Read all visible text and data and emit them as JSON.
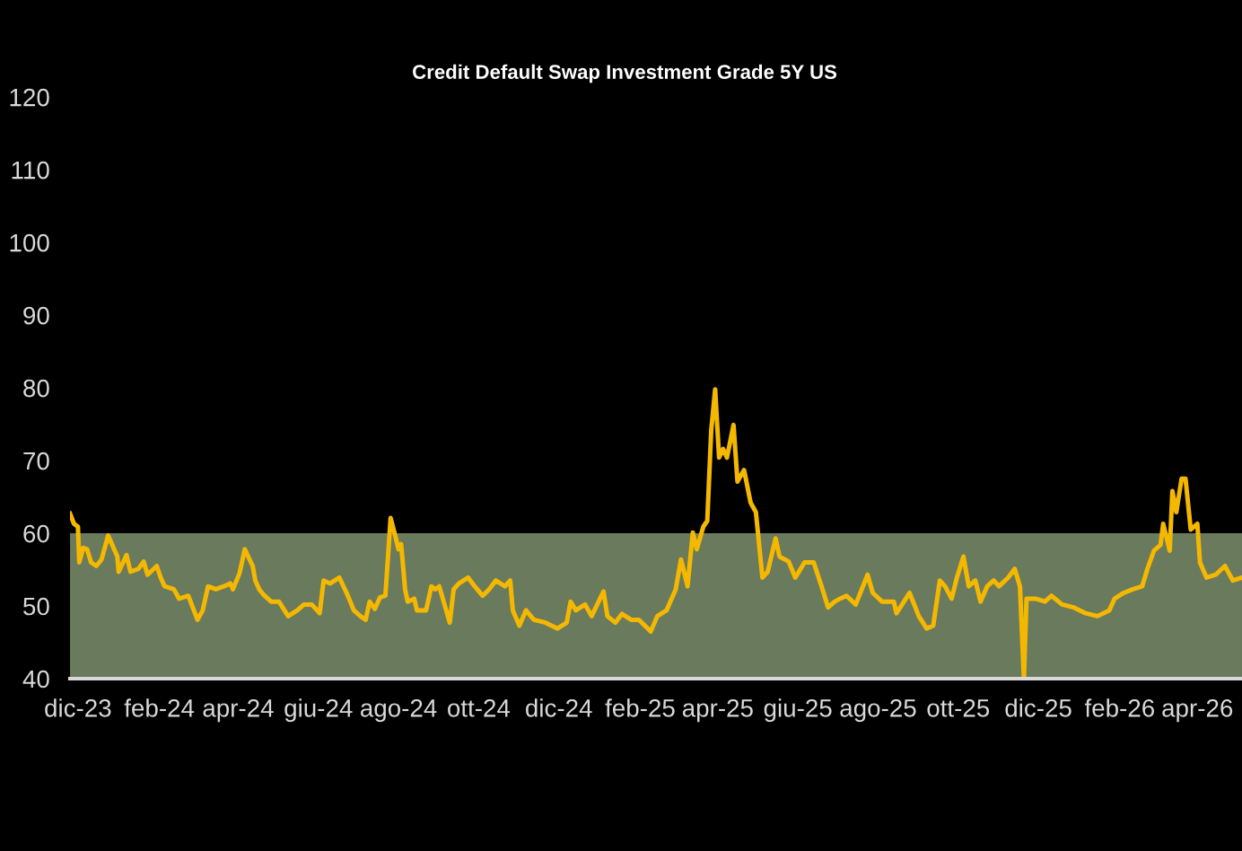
{
  "chart_data": {
    "type": "line",
    "title": "Credit Default Swap Investment Grade 5Y US",
    "x": [
      "2023-11-25",
      "2023-11-28",
      "2023-12-01",
      "2023-12-02",
      "2023-12-05",
      "2023-12-08",
      "2023-12-11",
      "2023-12-15",
      "2023-12-19",
      "2023-12-24",
      "2023-12-31",
      "2024-01-01",
      "2024-01-07",
      "2024-01-10",
      "2024-01-16",
      "2024-01-20",
      "2024-01-23",
      "2024-01-30",
      "2024-02-02",
      "2024-02-05",
      "2024-02-12",
      "2024-02-16",
      "2024-02-23",
      "2024-03-01",
      "2024-03-05",
      "2024-03-09",
      "2024-03-15",
      "2024-03-21",
      "2024-03-26",
      "2024-03-28",
      "2024-04-02",
      "2024-04-06",
      "2024-04-12",
      "2024-04-14",
      "2024-04-17",
      "2024-04-20",
      "2024-04-26",
      "2024-05-02",
      "2024-05-09",
      "2024-05-16",
      "2024-05-21",
      "2024-05-27",
      "2024-06-02",
      "2024-06-05",
      "2024-06-10",
      "2024-06-17",
      "2024-06-23",
      "2024-06-28",
      "2024-07-03",
      "2024-07-07",
      "2024-07-10",
      "2024-07-14",
      "2024-07-18",
      "2024-07-22",
      "2024-07-26",
      "2024-07-30",
      "2024-08-01",
      "2024-08-03",
      "2024-08-06",
      "2024-08-08",
      "2024-08-13",
      "2024-08-15",
      "2024-08-22",
      "2024-08-26",
      "2024-08-29",
      "2024-09-01",
      "2024-09-05",
      "2024-09-09",
      "2024-09-12",
      "2024-09-16",
      "2024-09-23",
      "2024-09-28",
      "2024-10-04",
      "2024-10-09",
      "2024-10-14",
      "2024-10-21",
      "2024-10-25",
      "2024-10-27",
      "2024-11-01",
      "2024-11-06",
      "2024-11-12",
      "2024-11-21",
      "2024-11-30",
      "2024-12-07",
      "2024-12-10",
      "2024-12-14",
      "2024-12-21",
      "2024-12-26",
      "2025-01-04",
      "2025-01-07",
      "2025-01-13",
      "2025-01-18",
      "2025-01-25",
      "2025-01-31",
      "2025-02-09",
      "2025-02-14",
      "2025-02-21",
      "2025-02-28",
      "2025-03-04",
      "2025-03-09",
      "2025-03-13",
      "2025-03-16",
      "2025-03-21",
      "2025-03-24",
      "2025-03-27",
      "2025-03-30",
      "2025-04-02",
      "2025-04-05",
      "2025-04-08",
      "2025-04-13",
      "2025-04-16",
      "2025-04-21",
      "2025-04-26",
      "2025-04-30",
      "2025-05-05",
      "2025-05-09",
      "2025-05-15",
      "2025-05-18",
      "2025-05-25",
      "2025-05-30",
      "2025-06-06",
      "2025-06-13",
      "2025-06-19",
      "2025-06-24",
      "2025-06-29",
      "2025-07-03",
      "2025-07-08",
      "2025-07-15",
      "2025-07-24",
      "2025-07-28",
      "2025-08-04",
      "2025-08-13",
      "2025-08-15",
      "2025-08-25",
      "2025-09-01",
      "2025-09-07",
      "2025-09-12",
      "2025-09-17",
      "2025-09-21",
      "2025-09-26",
      "2025-09-30",
      "2025-10-05",
      "2025-10-09",
      "2025-10-14",
      "2025-10-18",
      "2025-10-23",
      "2025-10-28",
      "2025-11-01",
      "2025-11-08",
      "2025-11-13",
      "2025-11-17",
      "2025-11-20",
      "2025-11-22",
      "2025-11-29",
      "2025-12-06",
      "2025-12-11",
      "2025-12-19",
      "2025-12-28",
      "2026-01-06",
      "2026-01-15",
      "2026-01-24",
      "2026-01-28",
      "2026-02-04",
      "2026-02-11",
      "2026-02-18",
      "2026-02-22",
      "2026-02-27",
      "2026-03-04",
      "2026-03-06",
      "2026-03-11",
      "2026-03-13",
      "2026-03-16",
      "2026-03-20",
      "2026-03-23",
      "2026-03-27",
      "2026-04-01",
      "2026-04-03",
      "2026-04-08",
      "2026-04-15",
      "2026-04-22",
      "2026-04-28",
      "2026-05-05"
    ],
    "series": [
      {
        "color": "#f5b800",
        "values": [
          62.7,
          61.3,
          60.9,
          56,
          58,
          57.8,
          56,
          55.5,
          56.4,
          59.7,
          56.8,
          54.7,
          57,
          54.7,
          55.1,
          56.1,
          54.3,
          55.5,
          53.9,
          52.7,
          52.3,
          51,
          51.4,
          48.1,
          49.4,
          52.7,
          52.3,
          52.7,
          53.1,
          52.3,
          54.5,
          57.8,
          55.5,
          53.5,
          52.3,
          51.6,
          50.6,
          50.6,
          48.6,
          49.4,
          50.2,
          50.2,
          49,
          53.5,
          53.1,
          53.9,
          51.6,
          49.4,
          48.6,
          48.1,
          50.6,
          49.6,
          51.2,
          51.4,
          62.1,
          59.3,
          57.8,
          58.5,
          52.3,
          50.6,
          51,
          49.4,
          49.4,
          52.7,
          52.3,
          52.7,
          50.2,
          47.7,
          52.3,
          53.1,
          53.9,
          52.7,
          51.4,
          52.3,
          53.5,
          52.7,
          53.5,
          49.4,
          47.3,
          49.4,
          48.1,
          47.7,
          46.9,
          47.7,
          50.6,
          49.4,
          50.2,
          48.6,
          52,
          48.6,
          47.7,
          48.9,
          48.1,
          48.1,
          46.5,
          48.6,
          49.4,
          52.3,
          56.4,
          52.7,
          60.1,
          57.8,
          60.9,
          61.7,
          74.1,
          79.8,
          70.4,
          71.6,
          70.4,
          74.9,
          67.1,
          68.7,
          64.2,
          62.9,
          53.9,
          54.7,
          59.3,
          56.8,
          56.1,
          53.9,
          56,
          56,
          52.7,
          49.8,
          50.6,
          51,
          51.4,
          50.2,
          54.3,
          51.8,
          50.6,
          50.6,
          49,
          51.8,
          48.6,
          46.9,
          47.3,
          53.5,
          52.7,
          51,
          53.9,
          56.8,
          52.7,
          53.5,
          50.6,
          52.7,
          53.5,
          52.7,
          53.9,
          55.1,
          52.7,
          40,
          51,
          51,
          50.6,
          51.4,
          50.2,
          49.8,
          49,
          48.6,
          49.4,
          51,
          51.8,
          52.3,
          52.7,
          55.1,
          57.6,
          58.4,
          61.3,
          57.6,
          65.8,
          62.9,
          67.5,
          67.5,
          60.5,
          61.3,
          56,
          53.9,
          54.3,
          55.5,
          53.5,
          53.9
        ]
      }
    ],
    "xlim": [
      "2023-11-25",
      "2026-05-05"
    ],
    "xticks": [
      {
        "value": "2023-12-01",
        "label": "dic-23"
      },
      {
        "value": "2024-02-01",
        "label": "feb-24"
      },
      {
        "value": "2024-04-01",
        "label": "apr-24"
      },
      {
        "value": "2024-06-01",
        "label": "giu-24"
      },
      {
        "value": "2024-08-01",
        "label": "ago-24"
      },
      {
        "value": "2024-10-01",
        "label": "ott-24"
      },
      {
        "value": "2024-12-01",
        "label": "dic-24"
      },
      {
        "value": "2025-02-01",
        "label": "feb-25"
      },
      {
        "value": "2025-04-01",
        "label": "apr-25"
      },
      {
        "value": "2025-06-01",
        "label": "giu-25"
      },
      {
        "value": "2025-08-01",
        "label": "ago-25"
      },
      {
        "value": "2025-10-01",
        "label": "ott-25"
      },
      {
        "value": "2025-12-01",
        "label": "dic-25"
      },
      {
        "value": "2026-02-01",
        "label": "feb-26"
      },
      {
        "value": "2026-04-01",
        "label": "apr-26"
      }
    ],
    "ylim": [
      40,
      120
    ],
    "yticks": [
      40,
      50,
      60,
      70,
      80,
      90,
      100,
      110,
      120
    ],
    "bands": [
      {
        "axis": "y",
        "from": 40,
        "to": 60,
        "color": "#6a7a5c"
      }
    ],
    "grid": false,
    "legend": false,
    "line_style": "solid",
    "marker": "none"
  }
}
